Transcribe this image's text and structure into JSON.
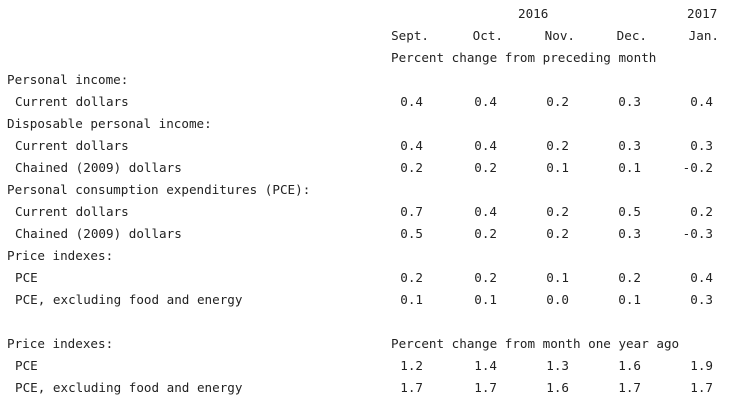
{
  "header": {
    "year_2016": "2016",
    "year_2017": "2017",
    "months": [
      "Sept.",
      "Oct.",
      "Nov.",
      "Dec.",
      "Jan."
    ],
    "caption_monthly": "Percent change from preceding month",
    "caption_yearly": "Percent change from month one year ago"
  },
  "rows": [
    {
      "label": "Personal income:",
      "indent": false,
      "values": []
    },
    {
      "label": "Current dollars",
      "indent": true,
      "values": [
        "0.4",
        "0.4",
        "0.2",
        "0.3",
        "0.4"
      ]
    },
    {
      "label": "Disposable personal income:",
      "indent": false,
      "values": []
    },
    {
      "label": "Current dollars",
      "indent": true,
      "values": [
        "0.4",
        "0.4",
        "0.2",
        "0.3",
        "0.3"
      ]
    },
    {
      "label": "Chained (2009) dollars",
      "indent": true,
      "values": [
        "0.2",
        "0.2",
        "0.1",
        "0.1",
        "-0.2"
      ]
    },
    {
      "label": "Personal consumption expenditures (PCE):",
      "indent": false,
      "values": []
    },
    {
      "label": "Current dollars",
      "indent": true,
      "values": [
        "0.7",
        "0.4",
        "0.2",
        "0.5",
        "0.2"
      ]
    },
    {
      "label": "Chained (2009) dollars",
      "indent": true,
      "values": [
        "0.5",
        "0.2",
        "0.2",
        "0.3",
        "-0.3"
      ]
    },
    {
      "label": "Price indexes:",
      "indent": false,
      "values": []
    },
    {
      "label": "PCE",
      "indent": true,
      "values": [
        "0.2",
        "0.2",
        "0.1",
        "0.2",
        "0.4"
      ]
    },
    {
      "label": "PCE, excluding food and energy",
      "indent": true,
      "values": [
        "0.1",
        "0.1",
        "0.0",
        "0.1",
        "0.3"
      ]
    }
  ],
  "yearly": {
    "section_label": "Price indexes:",
    "rows": [
      {
        "label": "PCE",
        "values": [
          "1.2",
          "1.4",
          "1.3",
          "1.6",
          "1.9"
        ]
      },
      {
        "label": "PCE, excluding food and energy",
        "values": [
          "1.7",
          "1.7",
          "1.6",
          "1.7",
          "1.7"
        ]
      }
    ]
  }
}
